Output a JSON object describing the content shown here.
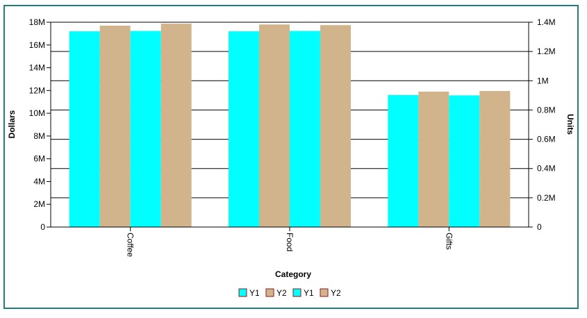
{
  "chart_data": {
    "type": "bar",
    "categories": [
      "Coffee",
      "Food",
      "Gifts"
    ],
    "xlabel": "Category",
    "ylabel": "Dollars",
    "y2label": "Units",
    "ylim": [
      0,
      18000000
    ],
    "y2lim": [
      0,
      1400000
    ],
    "yticks": [
      "0",
      "2M",
      "4M",
      "6M",
      "8M",
      "10M",
      "12M",
      "14M",
      "16M",
      "18M"
    ],
    "y2ticks": [
      "0",
      "0.2M",
      "0.4M",
      "0.6M",
      "0.8M",
      "1M",
      "1.2M",
      "1.4M"
    ],
    "grid": true,
    "legend_position": "bottom",
    "series": [
      {
        "name": "Y1",
        "axis": "left",
        "color": "#00ffff",
        "values": [
          17200000,
          17200000,
          11600000
        ]
      },
      {
        "name": "Y2",
        "axis": "left",
        "color": "#d2b48c",
        "values": [
          17700000,
          17800000,
          11900000
        ]
      },
      {
        "name": "Y1",
        "axis": "right",
        "color": "#00ffff",
        "values": [
          1340000,
          1340000,
          900000
        ]
      },
      {
        "name": "Y2",
        "axis": "right",
        "color": "#d2b48c",
        "values": [
          1390000,
          1380000,
          930000
        ]
      }
    ]
  }
}
